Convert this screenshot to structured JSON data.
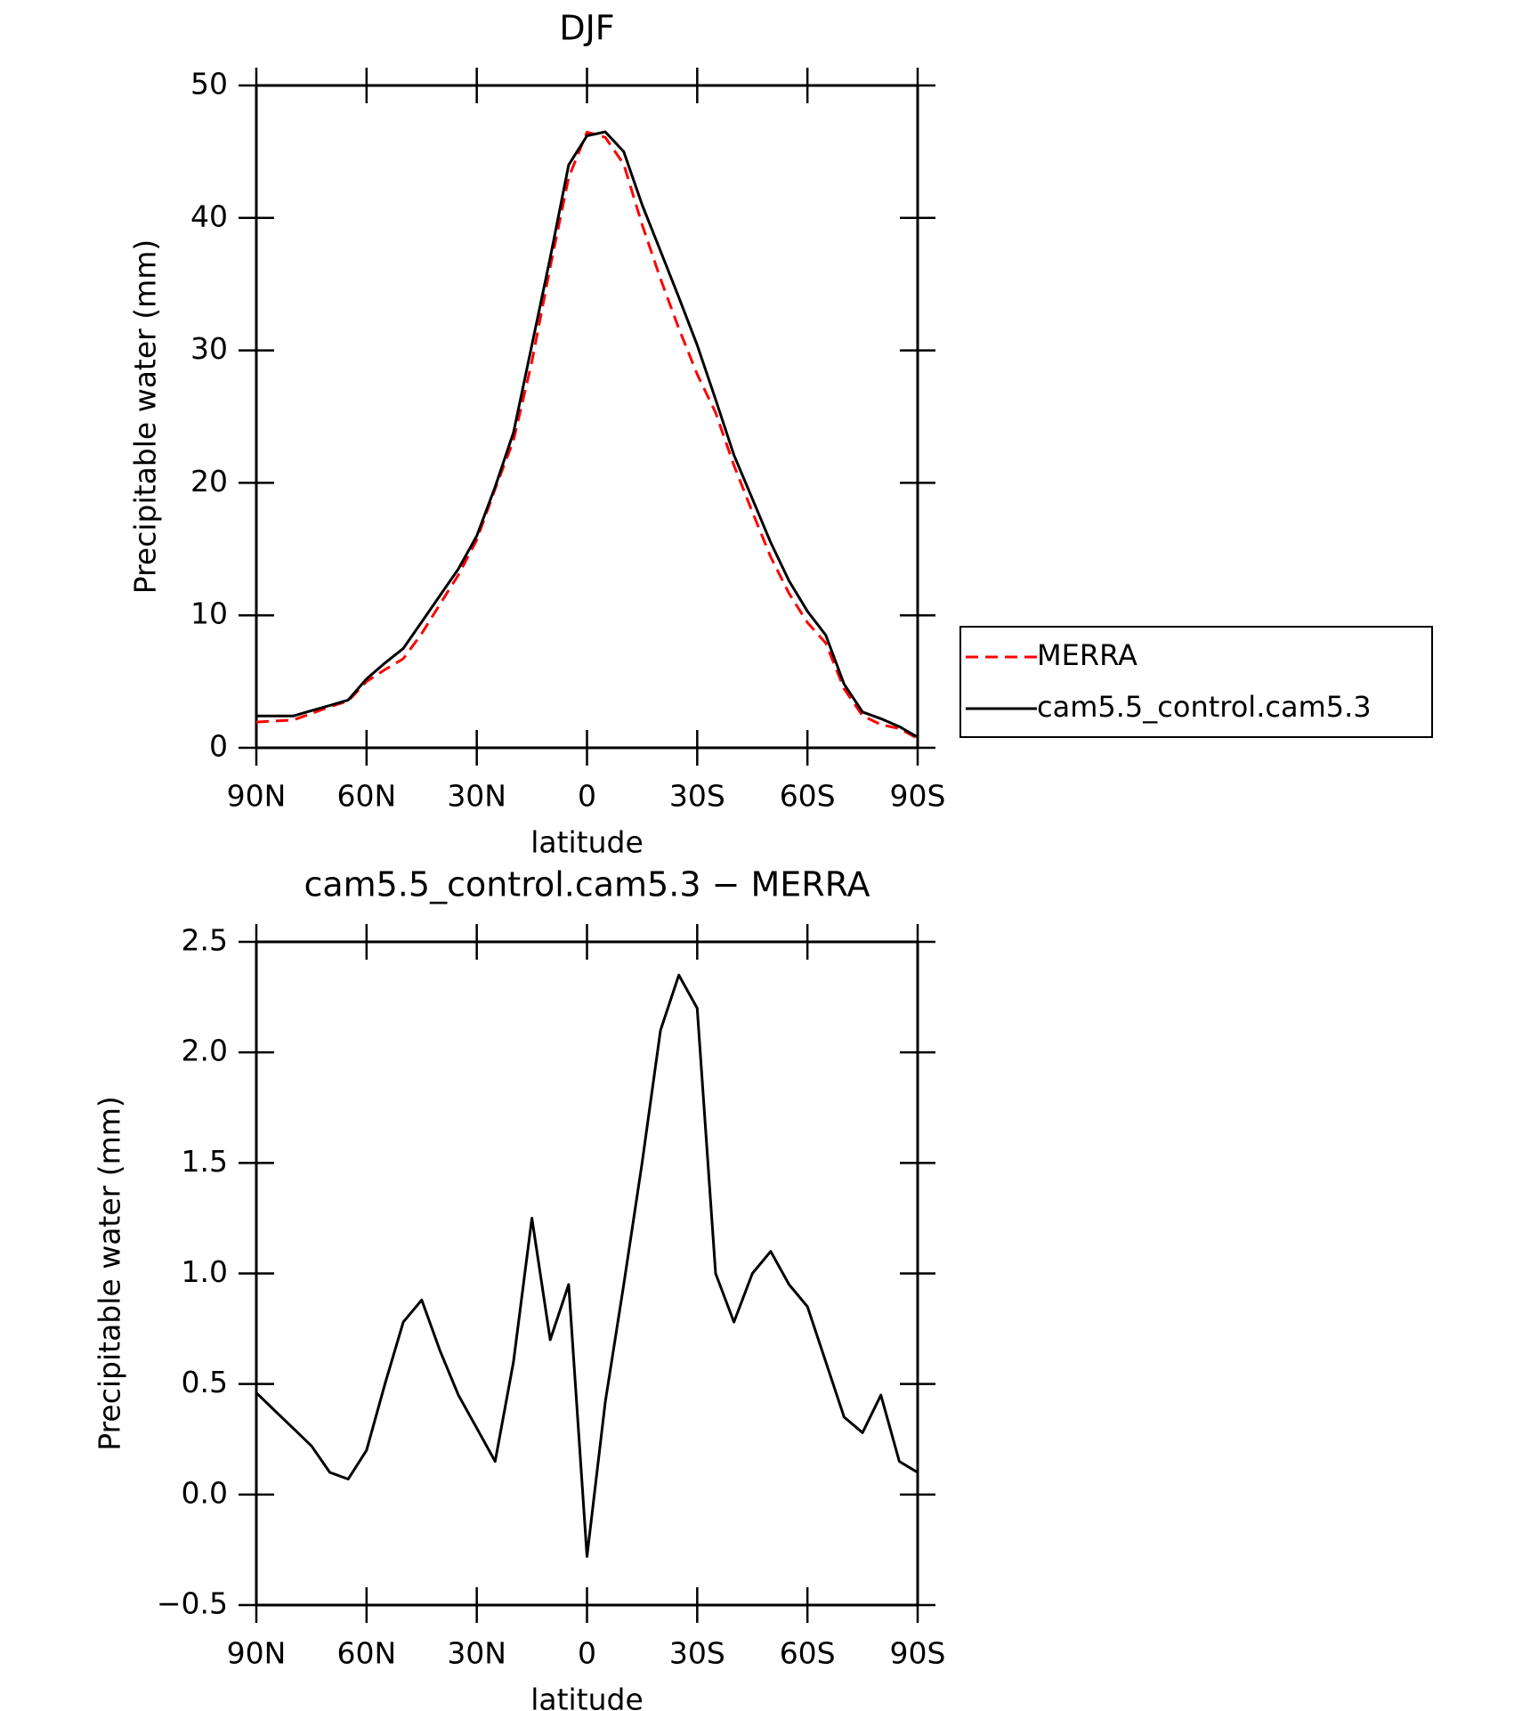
{
  "chart_data": [
    {
      "type": "line",
      "title": "DJF",
      "xlabel": "latitude",
      "ylabel": "Precipitable water (mm)",
      "x": [
        90,
        85,
        80,
        75,
        70,
        65,
        60,
        55,
        50,
        45,
        40,
        35,
        30,
        25,
        20,
        15,
        10,
        5,
        0,
        -5,
        -10,
        -15,
        -20,
        -25,
        -30,
        -35,
        -40,
        -45,
        -50,
        -55,
        -60,
        -65,
        -70,
        -75,
        -80,
        -85,
        -90
      ],
      "xlim": [
        90,
        -90
      ],
      "xticks": [
        {
          "value": 90,
          "label": "90N"
        },
        {
          "value": 60,
          "label": "60N"
        },
        {
          "value": 30,
          "label": "30N"
        },
        0,
        {
          "value": -30,
          "label": "30S"
        },
        {
          "value": -60,
          "label": "60S"
        },
        {
          "value": -90,
          "label": "90S"
        }
      ],
      "ylim": [
        0,
        50
      ],
      "yticks": [
        0,
        10,
        20,
        30,
        40,
        50
      ],
      "legend": "right",
      "series": [
        {
          "name": "MERRA",
          "color": "#ff0000",
          "dash": true,
          "values": [
            1.94,
            2.02,
            2.1,
            2.58,
            3.1,
            3.53,
            5.0,
            5.9,
            6.72,
            8.62,
            10.85,
            13.05,
            15.7,
            19.55,
            23.2,
            29.15,
            36.3,
            43.05,
            46.48,
            46.08,
            44.05,
            39.5,
            35.4,
            31.65,
            28.2,
            25.3,
            21.32,
            17.8,
            14.4,
            11.65,
            9.45,
            7.9,
            4.45,
            2.42,
            1.75,
            1.45,
            0.7
          ]
        },
        {
          "name": "cam5.5_control.cam5.3",
          "color": "#000000",
          "dash": false,
          "values": [
            2.4,
            2.4,
            2.4,
            2.8,
            3.2,
            3.6,
            5.2,
            6.4,
            7.5,
            9.5,
            11.5,
            13.5,
            16,
            19.7,
            23.8,
            30.4,
            37,
            44,
            46.2,
            46.5,
            45,
            41,
            37.5,
            34,
            30.4,
            26.3,
            22.1,
            18.8,
            15.5,
            12.6,
            10.3,
            8.5,
            4.8,
            2.7,
            2.2,
            1.6,
            0.8
          ]
        }
      ]
    },
    {
      "type": "line",
      "title": "cam5.5_control.cam5.3 − MERRA",
      "xlabel": "latitude",
      "ylabel": "Precipitable water (mm)",
      "x": [
        90,
        85,
        80,
        75,
        70,
        65,
        60,
        55,
        50,
        45,
        40,
        35,
        30,
        25,
        20,
        15,
        10,
        5,
        0,
        -5,
        -10,
        -15,
        -20,
        -25,
        -30,
        -35,
        -40,
        -45,
        -50,
        -55,
        -60,
        -65,
        -70,
        -75,
        -80,
        -85,
        -90
      ],
      "xlim": [
        90,
        -90
      ],
      "xticks": [
        {
          "value": 90,
          "label": "90N"
        },
        {
          "value": 60,
          "label": "60N"
        },
        {
          "value": 30,
          "label": "30N"
        },
        0,
        {
          "value": -30,
          "label": "30S"
        },
        {
          "value": -60,
          "label": "60S"
        },
        {
          "value": -90,
          "label": "90S"
        }
      ],
      "ylim": [
        -0.5,
        2.5
      ],
      "yticks": [
        {
          "value": -0.5,
          "label": "−0.5"
        },
        {
          "value": 0,
          "label": "0.0"
        },
        0.5,
        {
          "value": 1,
          "label": "1.0"
        },
        1.5,
        {
          "value": 2,
          "label": "2.0"
        },
        2.5
      ],
      "color": "#000000",
      "values": [
        0.46,
        0.38,
        0.3,
        0.22,
        0.1,
        0.07,
        0.2,
        0.5,
        0.78,
        0.88,
        0.65,
        0.45,
        0.3,
        0.15,
        0.6,
        1.25,
        0.7,
        0.95,
        -0.28,
        0.42,
        0.95,
        1.5,
        2.1,
        2.35,
        2.2,
        1.0,
        0.78,
        1.0,
        1.1,
        0.95,
        0.85,
        0.6,
        0.35,
        0.28,
        0.45,
        0.15,
        0.1
      ]
    }
  ]
}
